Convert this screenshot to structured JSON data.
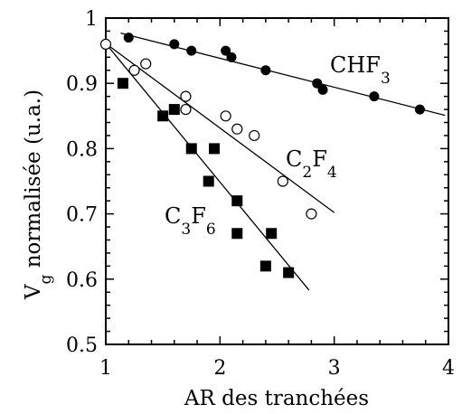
{
  "chart_data": {
    "type": "scatter",
    "title": "",
    "xlabel": "AR des tranchées",
    "ylabel": {
      "prefix": "V",
      "subscript": "g",
      "suffix": " normalisée (u.a.)"
    },
    "xlim": [
      1,
      4
    ],
    "ylim": [
      0.5,
      1.0
    ],
    "xticks": [
      "1",
      "2",
      "3",
      "4"
    ],
    "yticks": [
      "0.5",
      "0.6",
      "0.7",
      "0.8",
      "0.9",
      "1"
    ],
    "grid": false,
    "legend": "none (series labelled directly on the plot)",
    "series": [
      {
        "name": "CHF3",
        "label": {
          "parts": [
            {
              "t": "CHF",
              "sub": false
            },
            {
              "t": "3",
              "sub": true
            }
          ]
        },
        "marker": "filled-circle",
        "color": "#000000",
        "points": [
          [
            1.2,
            0.97
          ],
          [
            1.6,
            0.96
          ],
          [
            1.75,
            0.95
          ],
          [
            2.05,
            0.95
          ],
          [
            2.1,
            0.94
          ],
          [
            2.4,
            0.92
          ],
          [
            2.85,
            0.9
          ],
          [
            2.9,
            0.89
          ],
          [
            3.35,
            0.88
          ],
          [
            3.75,
            0.86
          ]
        ],
        "fit": [
          [
            1.13,
            0.977
          ],
          [
            3.97,
            0.851
          ]
        ]
      },
      {
        "name": "C2F4",
        "label": {
          "parts": [
            {
              "t": "C",
              "sub": false
            },
            {
              "t": "2",
              "sub": true
            },
            {
              "t": "F",
              "sub": false
            },
            {
              "t": "4",
              "sub": true
            }
          ]
        },
        "marker": "open-circle",
        "color": "#000000",
        "points": [
          [
            1.0,
            0.96
          ],
          [
            1.25,
            0.92
          ],
          [
            1.35,
            0.93
          ],
          [
            1.7,
            0.88
          ],
          [
            1.7,
            0.86
          ],
          [
            2.05,
            0.85
          ],
          [
            2.15,
            0.83
          ],
          [
            2.3,
            0.82
          ],
          [
            2.55,
            0.75
          ],
          [
            2.8,
            0.7
          ]
        ],
        "fit": [
          [
            1.0,
            0.961
          ],
          [
            3.0,
            0.702
          ]
        ]
      },
      {
        "name": "C3F6",
        "label": {
          "parts": [
            {
              "t": "C",
              "sub": false
            },
            {
              "t": "3",
              "sub": true
            },
            {
              "t": "F",
              "sub": false
            },
            {
              "t": "6",
              "sub": true
            }
          ]
        },
        "marker": "filled-square",
        "color": "#000000",
        "points": [
          [
            1.15,
            0.9
          ],
          [
            1.5,
            0.85
          ],
          [
            1.6,
            0.86
          ],
          [
            1.75,
            0.8
          ],
          [
            1.95,
            0.8
          ],
          [
            1.9,
            0.75
          ],
          [
            2.15,
            0.72
          ],
          [
            2.15,
            0.67
          ],
          [
            2.45,
            0.67
          ],
          [
            2.4,
            0.62
          ],
          [
            2.6,
            0.61
          ]
        ],
        "fit": [
          [
            1.0,
            0.961
          ],
          [
            2.78,
            0.583
          ]
        ]
      }
    ]
  }
}
